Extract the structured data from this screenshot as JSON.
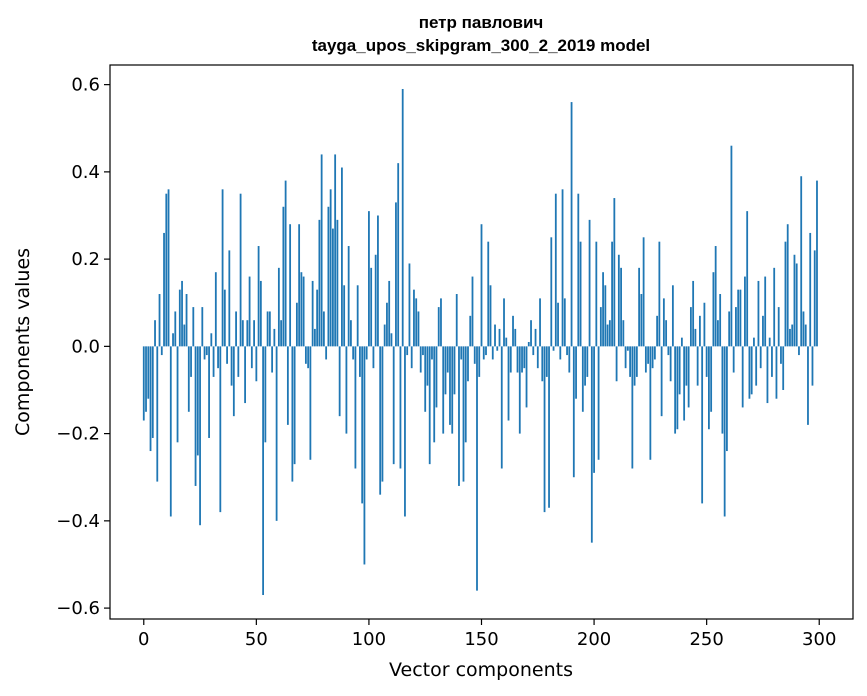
{
  "chart_data": {
    "type": "bar",
    "title": [
      "петр павлович",
      "tayga_upos_skipgram_300_2_2019 model"
    ],
    "xlabel": "Vector components",
    "ylabel": "Components values",
    "xlim": [
      -15,
      315
    ],
    "ylim": [
      -0.625,
      0.645
    ],
    "xticks": [
      0,
      50,
      100,
      150,
      200,
      250,
      300
    ],
    "xtick_labels": [
      "0",
      "50",
      "100",
      "150",
      "200",
      "250",
      "300"
    ],
    "yticks": [
      -0.6,
      -0.4,
      -0.2,
      0.0,
      0.2,
      0.4,
      0.6
    ],
    "ytick_labels": [
      "−0.6",
      "−0.4",
      "−0.2",
      "0.0",
      "0.2",
      "0.4",
      "0.6"
    ],
    "bar_color": "#1f77b4",
    "categories_note": "component index 0..299",
    "values": [
      -0.17,
      -0.15,
      -0.12,
      -0.24,
      -0.21,
      0.06,
      -0.31,
      0.12,
      -0.02,
      0.26,
      0.35,
      0.36,
      -0.39,
      0.03,
      0.08,
      -0.22,
      0.13,
      0.15,
      0.05,
      0.12,
      -0.15,
      -0.07,
      0.09,
      -0.32,
      -0.25,
      -0.41,
      0.09,
      -0.03,
      -0.02,
      -0.21,
      0.03,
      -0.07,
      0.17,
      -0.05,
      -0.38,
      0.36,
      0.13,
      -0.04,
      0.22,
      -0.09,
      -0.16,
      0.08,
      -0.07,
      0.35,
      0.06,
      -0.13,
      0.06,
      0.16,
      -0.05,
      0.06,
      -0.08,
      0.23,
      0.15,
      -0.57,
      -0.22,
      0.08,
      0.08,
      -0.06,
      0.04,
      -0.4,
      0.18,
      0.06,
      0.32,
      0.38,
      -0.18,
      0.28,
      -0.31,
      -0.27,
      0.1,
      0.28,
      0.17,
      0.16,
      -0.04,
      -0.05,
      -0.26,
      0.15,
      0.04,
      0.13,
      0.29,
      0.44,
      0.08,
      -0.03,
      0.32,
      0.36,
      0.27,
      0.44,
      0.29,
      -0.16,
      0.41,
      0.14,
      -0.2,
      0.23,
      0.06,
      -0.03,
      -0.28,
      0.14,
      -0.07,
      -0.36,
      -0.5,
      -0.03,
      0.31,
      0.18,
      -0.05,
      0.21,
      0.3,
      -0.34,
      -0.31,
      0.05,
      0.1,
      0.15,
      0.03,
      -0.27,
      0.33,
      0.42,
      -0.28,
      0.59,
      -0.39,
      -0.02,
      0.19,
      -0.05,
      0.13,
      0.11,
      0.08,
      -0.06,
      -0.02,
      -0.15,
      -0.09,
      -0.27,
      -0.03,
      -0.22,
      -0.14,
      0.09,
      0.11,
      -0.2,
      -0.11,
      -0.06,
      -0.18,
      -0.2,
      -0.11,
      0.12,
      -0.32,
      -0.03,
      -0.31,
      -0.22,
      -0.08,
      0.07,
      0.16,
      -0.04,
      -0.56,
      -0.07,
      0.28,
      -0.03,
      -0.02,
      0.24,
      0.14,
      -0.03,
      0.05,
      -0.01,
      0.04,
      -0.28,
      0.11,
      0.02,
      -0.17,
      -0.06,
      0.07,
      0.04,
      -0.06,
      -0.2,
      -0.06,
      -0.05,
      -0.14,
      0.01,
      0.06,
      -0.02,
      0.04,
      -0.05,
      0.11,
      -0.08,
      -0.38,
      -0.07,
      -0.37,
      0.25,
      -0.01,
      0.35,
      0.1,
      -0.03,
      0.36,
      0.11,
      -0.02,
      -0.06,
      0.56,
      -0.3,
      -0.12,
      0.35,
      0.24,
      -0.15,
      -0.09,
      -0.07,
      0.29,
      -0.45,
      -0.29,
      0.24,
      -0.26,
      0.09,
      0.17,
      0.14,
      0.05,
      0.06,
      0.24,
      0.34,
      -0.08,
      0.21,
      0.18,
      0.06,
      -0.05,
      -0.01,
      -0.07,
      -0.28,
      -0.09,
      -0.07,
      0.18,
      0.12,
      0.25,
      -0.06,
      -0.04,
      -0.26,
      -0.05,
      -0.03,
      0.07,
      0.24,
      -0.16,
      0.11,
      0.06,
      -0.02,
      -0.08,
      0.14,
      -0.2,
      -0.19,
      -0.11,
      0.02,
      -0.17,
      -0.09,
      -0.14,
      0.09,
      0.15,
      0.04,
      -0.09,
      0.07,
      -0.36,
      0.1,
      -0.07,
      -0.19,
      -0.15,
      0.17,
      0.23,
      0.06,
      0.12,
      -0.2,
      -0.39,
      -0.24,
      0.08,
      0.46,
      -0.06,
      0.09,
      0.13,
      0.13,
      -0.14,
      0.16,
      0.31,
      -0.12,
      -0.11,
      0.02,
      -0.09,
      0.15,
      -0.05,
      0.07,
      0.16,
      -0.13,
      0.02,
      -0.07,
      0.18,
      -0.12,
      0.09,
      -0.04,
      -0.1,
      0.24,
      0.28,
      0.04,
      0.05,
      0.21,
      0.19,
      -0.02,
      0.39,
      0.08,
      0.05,
      -0.18,
      0.26,
      -0.09,
      0.22,
      0.38
    ]
  }
}
